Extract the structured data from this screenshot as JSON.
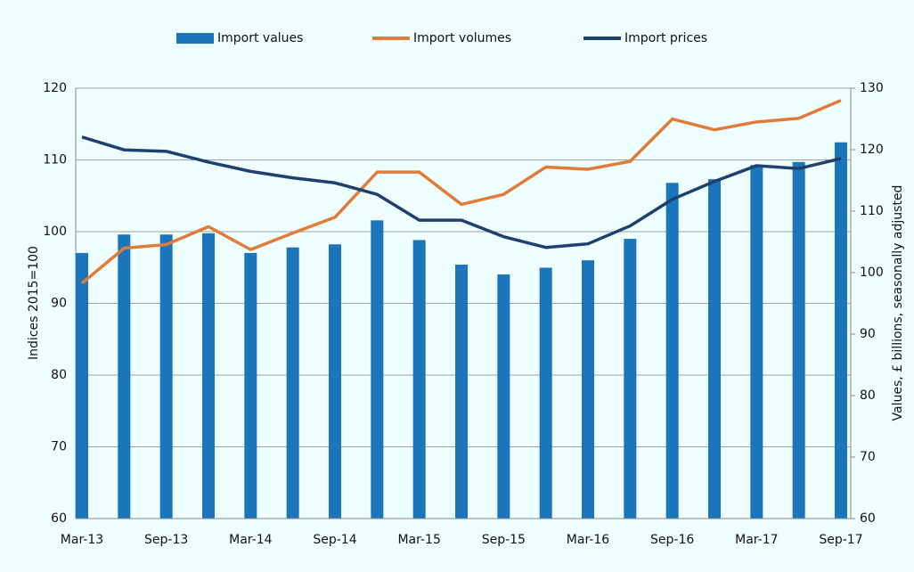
{
  "chart_data": {
    "type": "bar-line",
    "categories": [
      "Mar-13",
      null,
      "Sep-13",
      null,
      "Mar-14",
      null,
      "Sep-14",
      null,
      "Mar-15",
      null,
      "Sep-15",
      null,
      "Mar-16",
      null,
      "Sep-16",
      null,
      "Mar-17",
      null,
      "Sep-17"
    ],
    "series": [
      {
        "name": "Import values",
        "type": "bar",
        "axis": "y2",
        "color": "#1b75bb",
        "values": [
          103.2,
          106.2,
          106.2,
          106.4,
          103.2,
          104.1,
          104.6,
          108.5,
          105.3,
          101.3,
          99.7,
          100.8,
          102.0,
          105.5,
          114.6,
          115.2,
          117.5,
          118.0,
          121.2
        ]
      },
      {
        "name": "Import volumes",
        "type": "line",
        "color": "#e07b39",
        "values": [
          92.8,
          97.7,
          98.2,
          100.7,
          97.5,
          99.8,
          102.0,
          108.3,
          108.3,
          103.8,
          105.2,
          109.0,
          108.7,
          109.8,
          115.7,
          114.2,
          115.3,
          115.8,
          118.3
        ]
      },
      {
        "name": "Import prices",
        "type": "line",
        "color": "#1f3f6e",
        "values": [
          113.2,
          111.4,
          111.2,
          109.7,
          108.4,
          107.5,
          106.8,
          105.2,
          101.6,
          101.6,
          99.3,
          97.8,
          98.3,
          100.8,
          104.5,
          107.0,
          109.2,
          108.8,
          110.2
        ]
      }
    ],
    "ylabel": "Indices 2015=100",
    "y2label": "Values, £ billions, seasonally adjusted",
    "ylim": [
      60,
      120
    ],
    "yticks": [
      60,
      70,
      80,
      90,
      100,
      110,
      120
    ],
    "y2lim": [
      60,
      130
    ],
    "y2ticks": [
      60,
      70,
      80,
      90,
      100,
      110,
      120,
      130
    ],
    "grid": true,
    "legend": "top"
  }
}
